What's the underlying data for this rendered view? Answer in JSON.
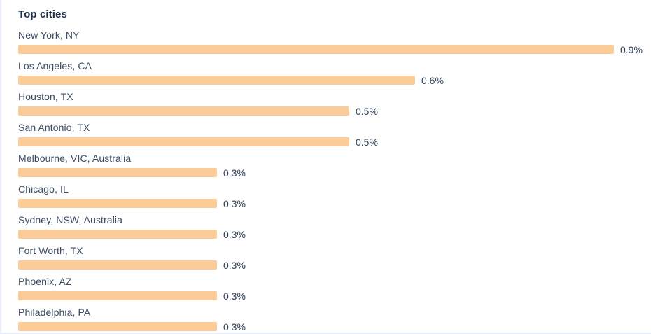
{
  "panel": {
    "title": "Top cities"
  },
  "colors": {
    "bar": "#fbcb98",
    "title_text": "#1b2c45",
    "label_text": "#3c4c63",
    "value_text": "#2e3e55",
    "border": "#e9effb",
    "background": "#ffffff"
  },
  "chart_data": {
    "type": "bar",
    "orientation": "horizontal",
    "title": "Top cities",
    "categories": [
      "New York, NY",
      "Los Angeles, CA",
      "Houston, TX",
      "San Antonio, TX",
      "Melbourne, VIC, Australia",
      "Chicago, IL",
      "Sydney, NSW, Australia",
      "Fort Worth, TX",
      "Phoenix, AZ",
      "Philadelphia, PA"
    ],
    "values": [
      0.9,
      0.6,
      0.5,
      0.5,
      0.3,
      0.3,
      0.3,
      0.3,
      0.3,
      0.3
    ],
    "value_labels": [
      "0.9%",
      "0.6%",
      "0.5%",
      "0.5%",
      "0.3%",
      "0.3%",
      "0.3%",
      "0.3%",
      "0.3%",
      "0.3%"
    ],
    "unit": "%",
    "xlim": [
      0,
      0.93
    ],
    "grid": false,
    "legend": "none",
    "bar_color": "#fbcb98",
    "value_label_position": "right-of-bar"
  }
}
